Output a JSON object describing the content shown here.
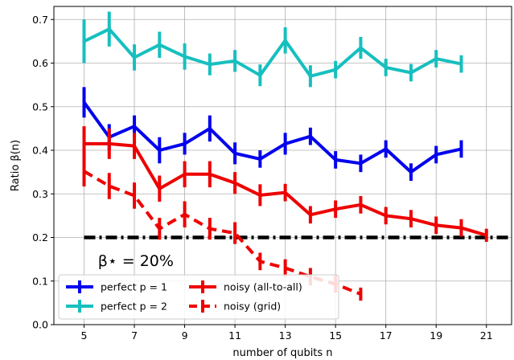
{
  "chart_data": {
    "type": "line",
    "xlabel": "number of qubits n",
    "ylabel": "Ratio β(n)",
    "xlim": [
      3.8,
      22
    ],
    "ylim": [
      0.0,
      0.73
    ],
    "xticks": [
      5,
      7,
      9,
      11,
      13,
      15,
      17,
      19,
      21
    ],
    "yticks": [
      0.0,
      0.1,
      0.2,
      0.3,
      0.4,
      0.5,
      0.6,
      0.7
    ],
    "grid": true,
    "legend_position": "lower-left",
    "threshold": {
      "value": 0.2,
      "label": "β⋆ = 20%",
      "style": "dash-dot",
      "color": "#000000"
    },
    "series": [
      {
        "name": "perfect p = 1",
        "color": "#0000ee",
        "dash": "solid",
        "x": [
          5,
          6,
          7,
          8,
          9,
          10,
          11,
          12,
          13,
          14,
          15,
          16,
          17,
          18,
          19,
          20
        ],
        "y": [
          0.51,
          0.43,
          0.455,
          0.4,
          0.415,
          0.45,
          0.393,
          0.38,
          0.415,
          0.432,
          0.378,
          0.37,
          0.403,
          0.35,
          0.39,
          0.403
        ],
        "err": [
          0.035,
          0.03,
          0.025,
          0.03,
          0.025,
          0.03,
          0.025,
          0.02,
          0.025,
          0.02,
          0.02,
          0.02,
          0.02,
          0.02,
          0.02,
          0.02
        ]
      },
      {
        "name": "perfect p = 2",
        "color": "#17bfbf",
        "dash": "solid",
        "x": [
          5,
          6,
          7,
          8,
          9,
          10,
          11,
          12,
          13,
          14,
          15,
          16,
          17,
          18,
          19,
          20
        ],
        "y": [
          0.65,
          0.678,
          0.613,
          0.642,
          0.615,
          0.597,
          0.605,
          0.572,
          0.652,
          0.57,
          0.585,
          0.635,
          0.59,
          0.578,
          0.61,
          0.598
        ],
        "err": [
          0.05,
          0.04,
          0.03,
          0.03,
          0.03,
          0.025,
          0.025,
          0.025,
          0.03,
          0.025,
          0.02,
          0.025,
          0.02,
          0.02,
          0.02,
          0.02
        ]
      },
      {
        "name": "noisy (all-to-all)",
        "color": "#ee0000",
        "dash": "solid",
        "x": [
          5,
          6,
          7,
          8,
          9,
          10,
          11,
          12,
          13,
          14,
          15,
          16,
          17,
          18,
          19,
          20,
          21
        ],
        "y": [
          0.415,
          0.415,
          0.41,
          0.312,
          0.345,
          0.345,
          0.325,
          0.297,
          0.303,
          0.252,
          0.265,
          0.275,
          0.25,
          0.243,
          0.228,
          0.222,
          0.205
        ],
        "err": [
          0.04,
          0.035,
          0.03,
          0.03,
          0.03,
          0.03,
          0.025,
          0.025,
          0.02,
          0.02,
          0.02,
          0.02,
          0.02,
          0.02,
          0.02,
          0.02,
          0.015
        ]
      },
      {
        "name": "noisy (grid)",
        "color": "#ee0000",
        "dash": "dashed",
        "x": [
          5,
          6,
          7,
          8,
          9,
          10,
          11,
          12,
          13,
          14,
          15,
          16
        ],
        "y": [
          0.352,
          0.318,
          0.296,
          0.22,
          0.253,
          0.22,
          0.21,
          0.145,
          0.13,
          0.11,
          0.093,
          0.07
        ],
        "err": [
          0.035,
          0.03,
          0.03,
          0.025,
          0.03,
          0.025,
          0.025,
          0.02,
          0.02,
          0.02,
          0.02,
          0.015
        ]
      }
    ],
    "legend_entries": [
      {
        "label": "perfect p = 1",
        "series": 0
      },
      {
        "label": "perfect p = 2",
        "series": 1
      },
      {
        "label": "noisy (all-to-all)",
        "series": 2
      },
      {
        "label": "noisy (grid)",
        "series": 3
      }
    ]
  }
}
